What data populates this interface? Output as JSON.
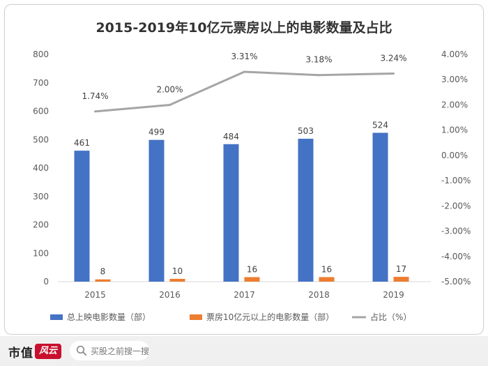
{
  "chart_data": {
    "type": "bar",
    "title": "2015-2019年10亿元票房以上的电影数量及占比",
    "categories": [
      "2015",
      "2016",
      "2017",
      "2018",
      "2019"
    ],
    "series": [
      {
        "name": "总上映电影数量（部）",
        "kind": "bar",
        "axis": "left",
        "color": "#4472c4",
        "values": [
          461,
          499,
          484,
          503,
          524
        ],
        "labels": [
          "461",
          "499",
          "484",
          "503",
          "524"
        ]
      },
      {
        "name": "票房10亿元以上的电影数量（部）",
        "kind": "bar",
        "axis": "left",
        "color": "#ed7d31",
        "values": [
          8,
          10,
          16,
          16,
          17
        ],
        "labels": [
          "8",
          "10",
          "16",
          "16",
          "17"
        ]
      },
      {
        "name": "占比（%）",
        "kind": "line",
        "axis": "right",
        "color": "#a5a5a5",
        "values": [
          1.74,
          2.0,
          3.31,
          3.18,
          3.24
        ],
        "labels": [
          "1.74%",
          "2.00%",
          "3.31%",
          "3.18%",
          "3.24%"
        ]
      }
    ],
    "y_left": {
      "min": 0,
      "max": 800,
      "ticks": [
        0,
        100,
        200,
        300,
        400,
        500,
        600,
        700,
        800
      ],
      "tick_labels": [
        "0",
        "100",
        "200",
        "300",
        "400",
        "500",
        "600",
        "700",
        "800"
      ]
    },
    "y_right": {
      "min": -5,
      "max": 4,
      "ticks": [
        -5,
        -4,
        -3,
        -2,
        -1,
        0,
        1,
        2,
        3,
        4
      ],
      "tick_labels": [
        "-5.00%",
        "-4.00%",
        "-3.00%",
        "-2.00%",
        "-1.00%",
        "0.00%",
        "1.00%",
        "2.00%",
        "3.00%",
        "4.00%"
      ]
    },
    "legend_position": "bottom",
    "grid": false
  },
  "footer": {
    "logo_text": "市值",
    "logo_badge": "风云",
    "search_placeholder": "买股之前搜一搜"
  }
}
